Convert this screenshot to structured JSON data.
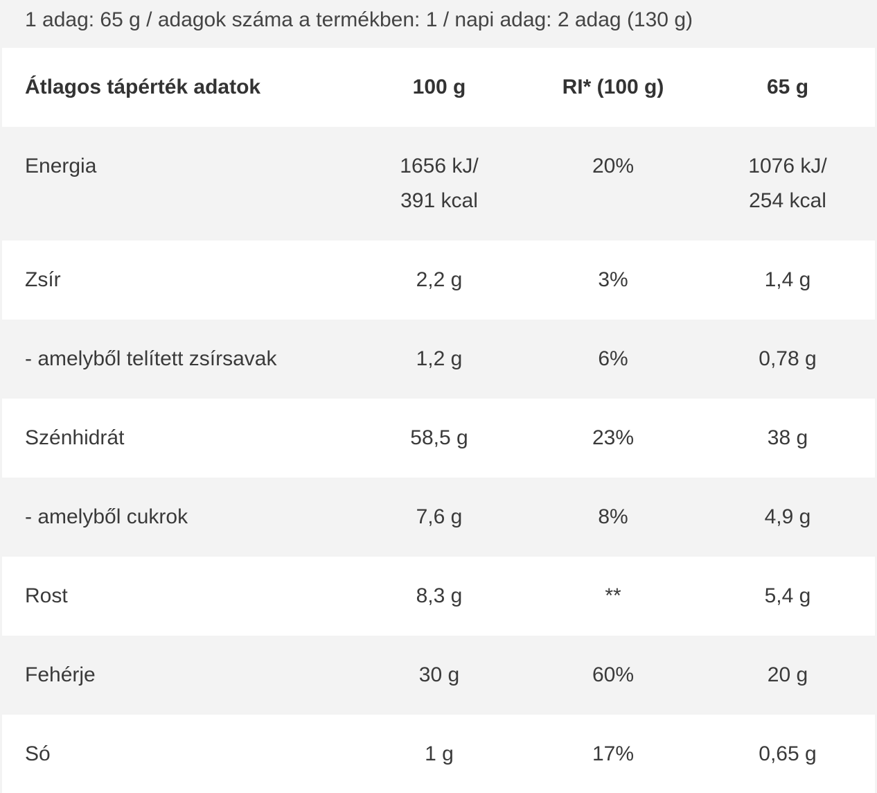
{
  "serving_info": "1 adag: 65 g / adagok száma a termékben: 1 / napi adag: 2 adag (130 g)",
  "table": {
    "headers": [
      "Átlagos tápérték adatok",
      "100 g",
      "RI* (100 g)",
      "65 g"
    ],
    "rows": [
      {
        "label": "Energia",
        "per100_line1": "1656 kJ/",
        "per100_line2": "391 kcal",
        "ri": "20%",
        "serving_line1": "1076 kJ/",
        "serving_line2": "254 kcal"
      },
      {
        "label": "Zsír",
        "per100": "2,2 g",
        "ri": "3%",
        "serving": "1,4 g"
      },
      {
        "label": "- amelyből telített zsírsavak",
        "per100": "1,2 g",
        "ri": "6%",
        "serving": "0,78 g"
      },
      {
        "label": "Szénhidrát",
        "per100": "58,5 g",
        "ri": "23%",
        "serving": "38 g"
      },
      {
        "label": "- amelyből cukrok",
        "per100": "7,6 g",
        "ri": "8%",
        "serving": "4,9 g"
      },
      {
        "label": "Rost",
        "per100": "8,3 g",
        "ri": "**",
        "serving": "5,4 g"
      },
      {
        "label": "Fehérje",
        "per100": "30 g",
        "ri": "60%",
        "serving": "20 g"
      },
      {
        "label": "Só",
        "per100": "1 g",
        "ri": "17%",
        "serving": "0,65 g"
      }
    ]
  },
  "colors": {
    "row_shaded": "#f3f3f3",
    "row_white": "#ffffff",
    "text": "#333333"
  }
}
